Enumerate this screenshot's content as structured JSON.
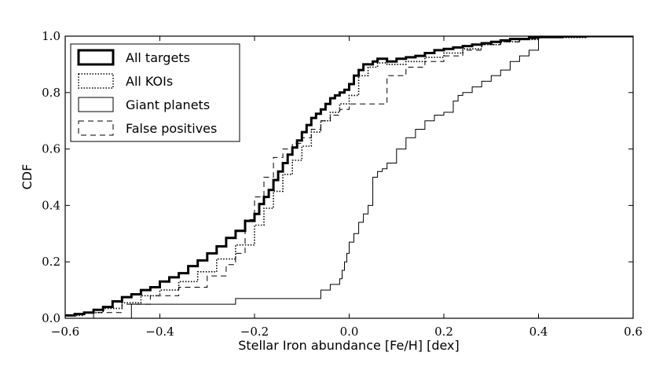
{
  "chart_data": {
    "type": "line",
    "subtype": "step-cdf",
    "title": "",
    "xlabel": "Stellar Iron abundance [Fe/H] [dex]",
    "ylabel": "CDF",
    "xlim": [
      -0.6,
      0.6
    ],
    "ylim": [
      0.0,
      1.0
    ],
    "xticks": [
      -0.6,
      -0.4,
      -0.2,
      0.0,
      0.2,
      0.4,
      0.6
    ],
    "yticks": [
      0.0,
      0.2,
      0.4,
      0.6,
      0.8,
      1.0
    ],
    "xtick_labels": [
      "−0.6",
      "−0.4",
      "−0.2",
      "0.0",
      "0.2",
      "0.4",
      "0.6"
    ],
    "ytick_labels": [
      "0.0",
      "0.2",
      "0.4",
      "0.6",
      "0.8",
      "1.0"
    ],
    "grid": false,
    "legend_position": "top-left",
    "series": [
      {
        "name": "All targets",
        "style": "thick-solid",
        "x": [
          -0.6,
          -0.58,
          -0.56,
          -0.54,
          -0.52,
          -0.5,
          -0.48,
          -0.46,
          -0.44,
          -0.42,
          -0.4,
          -0.38,
          -0.36,
          -0.34,
          -0.32,
          -0.3,
          -0.28,
          -0.26,
          -0.24,
          -0.22,
          -0.2,
          -0.19,
          -0.18,
          -0.17,
          -0.16,
          -0.15,
          -0.14,
          -0.13,
          -0.12,
          -0.11,
          -0.1,
          -0.09,
          -0.08,
          -0.07,
          -0.06,
          -0.05,
          -0.04,
          -0.03,
          -0.02,
          -0.01,
          0.0,
          0.01,
          0.02,
          0.03,
          0.04,
          0.05,
          0.06,
          0.07,
          0.08,
          0.1,
          0.12,
          0.14,
          0.16,
          0.18,
          0.2,
          0.22,
          0.24,
          0.26,
          0.28,
          0.3,
          0.32,
          0.34,
          0.36,
          0.38,
          0.4,
          0.45,
          0.5,
          0.55,
          0.6
        ],
        "y": [
          0.01,
          0.015,
          0.02,
          0.03,
          0.04,
          0.06,
          0.075,
          0.085,
          0.1,
          0.11,
          0.13,
          0.145,
          0.16,
          0.185,
          0.205,
          0.23,
          0.255,
          0.285,
          0.31,
          0.345,
          0.37,
          0.405,
          0.43,
          0.455,
          0.49,
          0.52,
          0.55,
          0.58,
          0.605,
          0.63,
          0.66,
          0.685,
          0.71,
          0.725,
          0.74,
          0.76,
          0.78,
          0.79,
          0.8,
          0.81,
          0.83,
          0.86,
          0.88,
          0.9,
          0.9,
          0.91,
          0.92,
          0.92,
          0.91,
          0.92,
          0.925,
          0.93,
          0.94,
          0.95,
          0.955,
          0.96,
          0.965,
          0.97,
          0.975,
          0.98,
          0.985,
          0.99,
          0.99,
          0.995,
          0.997,
          0.999,
          1.0,
          1.0,
          1.0
        ]
      },
      {
        "name": "All KOIs",
        "style": "dotted",
        "x": [
          -0.6,
          -0.56,
          -0.52,
          -0.48,
          -0.44,
          -0.4,
          -0.36,
          -0.32,
          -0.28,
          -0.24,
          -0.2,
          -0.18,
          -0.16,
          -0.14,
          -0.12,
          -0.1,
          -0.08,
          -0.06,
          -0.04,
          -0.02,
          0.0,
          0.02,
          0.04,
          0.06,
          0.08,
          0.12,
          0.16,
          0.2,
          0.24,
          0.28,
          0.32,
          0.36,
          0.4,
          0.5,
          0.6
        ],
        "y": [
          0.01,
          0.02,
          0.035,
          0.055,
          0.08,
          0.1,
          0.13,
          0.165,
          0.21,
          0.26,
          0.33,
          0.39,
          0.45,
          0.51,
          0.56,
          0.61,
          0.66,
          0.7,
          0.73,
          0.76,
          0.79,
          0.86,
          0.89,
          0.905,
          0.9,
          0.91,
          0.925,
          0.94,
          0.955,
          0.97,
          0.98,
          0.988,
          0.995,
          1.0,
          1.0
        ]
      },
      {
        "name": "Giant planets",
        "style": "thin-solid",
        "x": [
          -0.6,
          -0.48,
          -0.46,
          -0.24,
          -0.06,
          -0.04,
          -0.02,
          -0.015,
          -0.01,
          -0.005,
          0.0,
          0.01,
          0.02,
          0.03,
          0.04,
          0.05,
          0.06,
          0.07,
          0.08,
          0.1,
          0.12,
          0.14,
          0.16,
          0.18,
          0.2,
          0.22,
          0.23,
          0.24,
          0.26,
          0.28,
          0.3,
          0.32,
          0.34,
          0.36,
          0.38,
          0.4,
          0.5,
          0.6
        ],
        "y": [
          0.0,
          0.0,
          0.05,
          0.07,
          0.1,
          0.12,
          0.14,
          0.17,
          0.2,
          0.23,
          0.27,
          0.3,
          0.34,
          0.37,
          0.4,
          0.5,
          0.52,
          0.53,
          0.55,
          0.6,
          0.64,
          0.67,
          0.7,
          0.72,
          0.73,
          0.77,
          0.79,
          0.8,
          0.82,
          0.84,
          0.86,
          0.88,
          0.91,
          0.93,
          0.95,
          1.0,
          1.0,
          1.0
        ]
      },
      {
        "name": "False positives",
        "style": "dashed",
        "x": [
          -0.6,
          -0.54,
          -0.48,
          -0.42,
          -0.36,
          -0.3,
          -0.26,
          -0.24,
          -0.22,
          -0.2,
          -0.18,
          -0.16,
          -0.14,
          -0.12,
          -0.1,
          -0.08,
          -0.06,
          -0.04,
          -0.02,
          0.0,
          0.02,
          0.04,
          0.06,
          0.08,
          0.12,
          0.16,
          0.2,
          0.24,
          0.28,
          0.32,
          0.36,
          0.4,
          0.5,
          0.6
        ],
        "y": [
          0.0,
          0.02,
          0.05,
          0.08,
          0.11,
          0.15,
          0.19,
          0.23,
          0.35,
          0.43,
          0.5,
          0.57,
          0.6,
          0.62,
          0.64,
          0.67,
          0.7,
          0.72,
          0.74,
          0.76,
          0.76,
          0.76,
          0.76,
          0.86,
          0.89,
          0.91,
          0.93,
          0.95,
          0.97,
          0.98,
          0.99,
          1.0,
          1.0,
          1.0
        ]
      }
    ]
  }
}
